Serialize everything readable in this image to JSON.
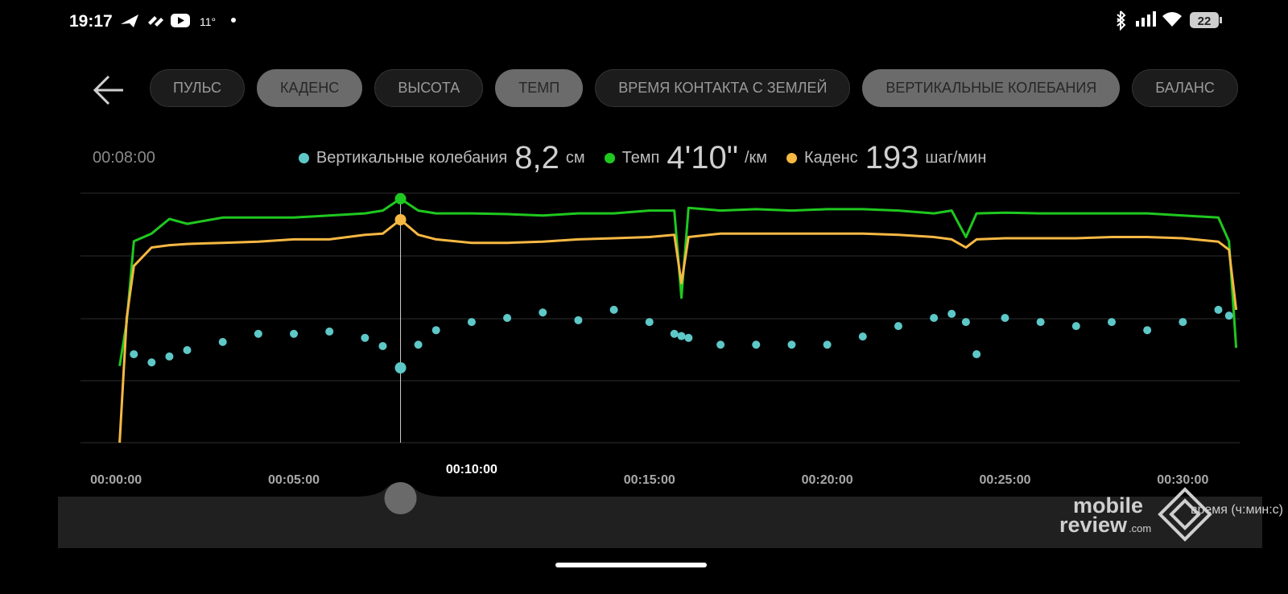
{
  "status_bar": {
    "time": "19:17",
    "temperature": "11°",
    "battery": "22"
  },
  "tabs": [
    {
      "label": "ПУЛЬС",
      "selected": false
    },
    {
      "label": "КАДЕНС",
      "selected": true
    },
    {
      "label": "ВЫСОТА",
      "selected": false
    },
    {
      "label": "ТЕМП",
      "selected": true
    },
    {
      "label": "ВРЕМЯ КОНТАКТА С ЗЕМЛЕЙ",
      "selected": false
    },
    {
      "label": "ВЕРТИКАЛЬНЫЕ КОЛЕБАНИЯ",
      "selected": true
    },
    {
      "label": "БАЛАНС",
      "selected": false
    }
  ],
  "chart_data": {
    "type": "line",
    "cursor": {
      "value": 8,
      "label": "00:08:00"
    },
    "x": [
      0.1,
      0.3,
      0.5,
      1,
      1.5,
      2,
      3,
      4,
      5,
      6,
      7,
      7.5,
      8,
      8.5,
      9,
      10,
      11,
      12,
      13,
      14,
      15,
      15.7,
      15.9,
      16.1,
      17,
      18,
      19,
      20,
      21,
      22,
      23,
      23.5,
      23.9,
      24.2,
      25,
      26,
      27,
      28,
      29,
      30,
      31,
      31.3,
      31.5
    ],
    "xlim": [
      -1,
      31.6
    ],
    "xticks": [
      {
        "value": 0,
        "label": "00:00:00"
      },
      {
        "value": 5,
        "label": "00:05:00"
      },
      {
        "value": 10,
        "label": "00:10:00"
      },
      {
        "value": 15,
        "label": "00:15:00"
      },
      {
        "value": 20,
        "label": "00:20:00"
      },
      {
        "value": 25,
        "label": "00:25:00"
      },
      {
        "value": 30,
        "label": "00:30:00"
      }
    ],
    "selected_xtick": 2,
    "xlabel": "время (ч:мин:с)",
    "series": [
      {
        "name": "Вертикальные колебания",
        "type": "scatter",
        "color": "#5ec8c8",
        "readout": "8,2",
        "unit": "см",
        "ylim": [
          6.5,
          12
        ],
        "values": [
          null,
          null,
          8.45,
          8.27,
          8.4,
          8.54,
          8.72,
          8.9,
          8.9,
          8.95,
          8.81,
          8.63,
          8.15,
          8.66,
          8.98,
          9.16,
          9.25,
          9.37,
          9.2,
          9.43,
          9.16,
          8.9,
          8.85,
          8.81,
          8.66,
          8.66,
          8.66,
          8.66,
          8.84,
          9.07,
          9.25,
          9.34,
          9.16,
          8.45,
          9.25,
          9.16,
          9.07,
          9.16,
          8.98,
          9.16,
          9.43,
          9.3,
          null
        ]
      },
      {
        "name": "Темп",
        "type": "line",
        "color": "#1fc81f",
        "readout": "4'10\"",
        "unit": "/км",
        "ylim": [
          600,
          242
        ],
        "values": [
          490,
          427,
          311,
          300,
          279,
          286,
          277,
          277,
          277,
          274,
          271,
          267,
          250,
          267,
          271,
          271,
          272,
          274,
          271,
          271,
          267,
          267,
          392,
          263,
          267,
          265,
          267,
          265,
          265,
          267,
          271,
          267,
          305,
          271,
          270,
          271,
          271,
          271,
          271,
          274,
          277,
          311,
          464
        ]
      },
      {
        "name": "Каденс",
        "type": "line",
        "color": "#f7b843",
        "readout": "193",
        "unit": "шаг/мин",
        "ylim": [
          0,
          216
        ],
        "values": [
          0,
          108,
          153,
          169,
          171,
          172,
          173,
          174,
          176,
          176,
          180,
          181,
          193,
          180,
          176,
          173,
          173,
          174,
          176,
          177,
          178,
          180,
          138,
          178,
          181,
          181,
          181,
          181,
          181,
          180,
          178,
          176,
          169,
          176,
          177,
          177,
          177,
          178,
          178,
          177,
          174,
          167,
          115
        ]
      }
    ]
  },
  "watermark": {
    "brand_top": "mobile",
    "brand_bottom": "review",
    "domain": ".com"
  }
}
